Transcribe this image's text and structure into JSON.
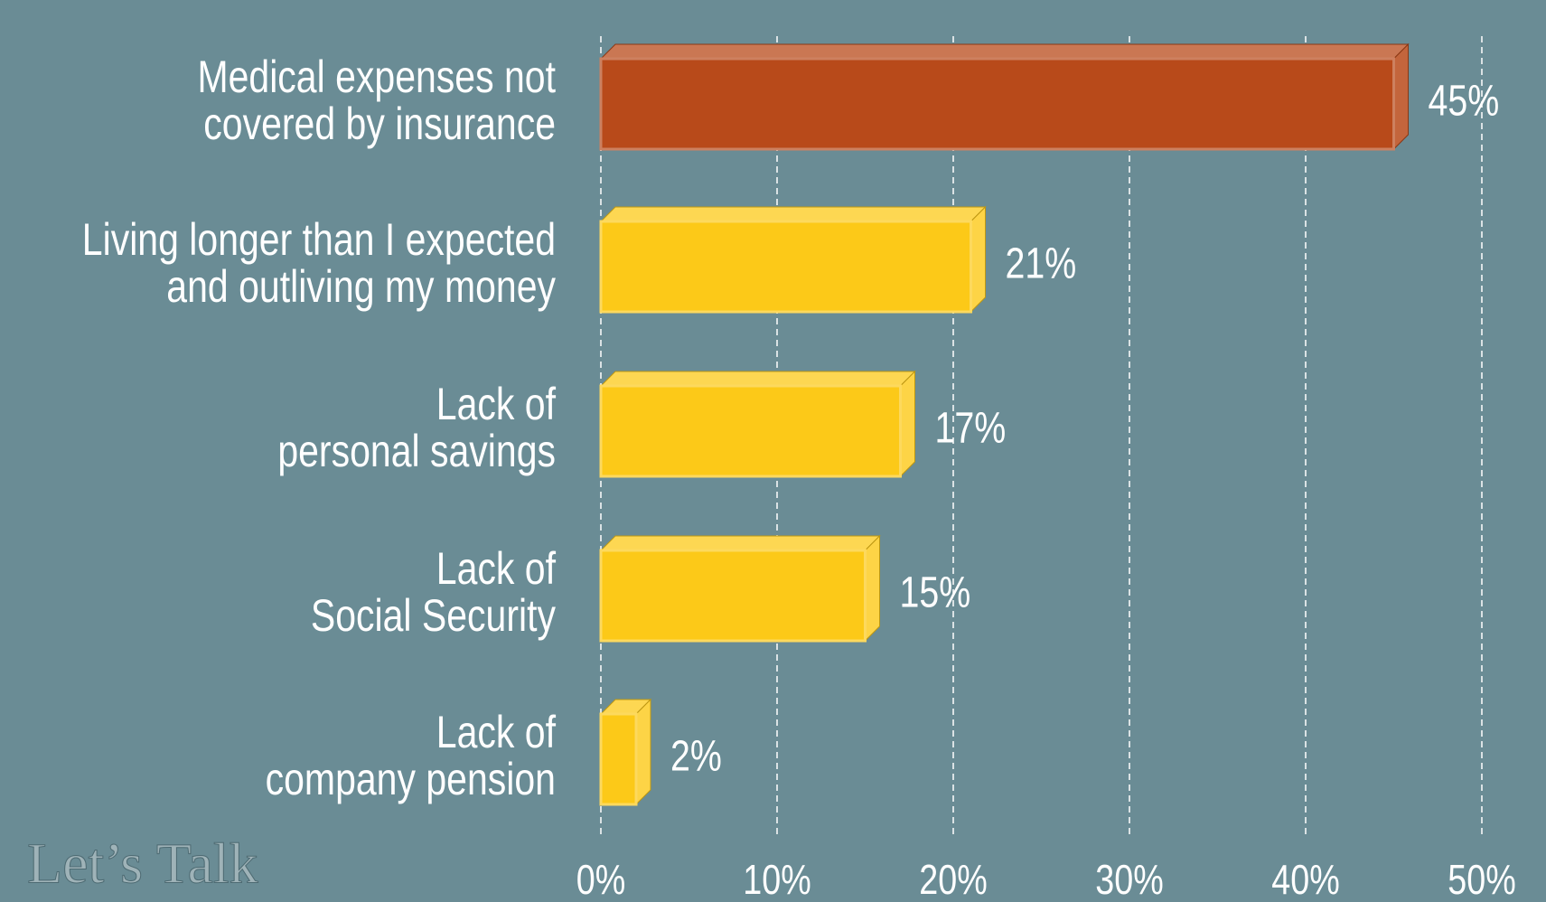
{
  "chart_data": {
    "type": "hbar3d",
    "categories": [
      [
        "Medical expenses not",
        "covered by insurance"
      ],
      [
        "Living longer than I expected",
        "and outliving my money"
      ],
      [
        "Lack of",
        "personal savings"
      ],
      [
        "Lack of",
        "Social Security"
      ],
      [
        "Lack of",
        "company pension"
      ]
    ],
    "values": [
      45,
      21,
      17,
      15,
      2
    ],
    "value_labels": [
      "45%",
      "21%",
      "17%",
      "15%",
      "2%"
    ],
    "colors": [
      "#b84a1a",
      "#fcc918",
      "#fcc918",
      "#fcc918",
      "#fcc918"
    ],
    "xlim": [
      0,
      50
    ],
    "xticks": [
      {
        "value": 0,
        "label": "0%"
      },
      {
        "value": 10,
        "label": "10%"
      },
      {
        "value": 20,
        "label": "20%"
      },
      {
        "value": 30,
        "label": "30%"
      },
      {
        "value": 40,
        "label": "40%"
      },
      {
        "value": 50,
        "label": "50%"
      }
    ],
    "grid": true,
    "logo": "Let’s Talk"
  }
}
